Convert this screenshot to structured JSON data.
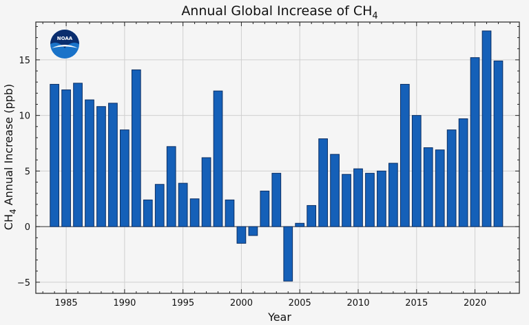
{
  "chart_data": {
    "type": "bar",
    "title": "Annual Global Increase of CH",
    "title_subscript": "4",
    "ylabel_prefix": "CH",
    "ylabel_subscript": "4",
    "ylabel_suffix": " Annual Increase (ppb)",
    "xlabel": "Year",
    "x": [
      1984,
      1985,
      1986,
      1987,
      1988,
      1989,
      1990,
      1991,
      1992,
      1993,
      1994,
      1995,
      1996,
      1997,
      1998,
      1999,
      2000,
      2001,
      2002,
      2003,
      2004,
      2005,
      2006,
      2007,
      2008,
      2009,
      2010,
      2011,
      2012,
      2013,
      2014,
      2015,
      2016,
      2017,
      2018,
      2019,
      2020,
      2021,
      2022
    ],
    "values": [
      12.8,
      12.3,
      12.9,
      11.4,
      10.8,
      11.1,
      8.7,
      14.1,
      2.4,
      3.8,
      7.2,
      3.9,
      2.5,
      6.2,
      12.2,
      2.4,
      -1.5,
      -0.8,
      3.2,
      4.8,
      -4.9,
      0.3,
      1.9,
      7.9,
      6.5,
      4.7,
      5.2,
      4.8,
      5.0,
      5.7,
      12.8,
      10.0,
      7.1,
      6.9,
      8.7,
      9.7,
      15.2,
      17.6,
      14.9
    ],
    "xlim": [
      1982.4,
      2023.8
    ],
    "ylim": [
      -6,
      18.4
    ],
    "xticks": [
      1985,
      1990,
      1995,
      2000,
      2005,
      2010,
      2015,
      2020
    ],
    "xtick_labels": [
      "1985",
      "1990",
      "1995",
      "2000",
      "2005",
      "2010",
      "2015",
      "2020"
    ],
    "yticks": [
      -5,
      0,
      5,
      10,
      15
    ],
    "ytick_labels": [
      "−5",
      "0",
      "5",
      "10",
      "15"
    ],
    "grid": true,
    "bar_color": "#1560b8",
    "bar_edge_color": "#0b2e63",
    "logo_text": "NOAA",
    "logo_colors": {
      "top": "#0a2d6e",
      "bottom": "#1a73c9",
      "bird": "#ffffff"
    }
  }
}
